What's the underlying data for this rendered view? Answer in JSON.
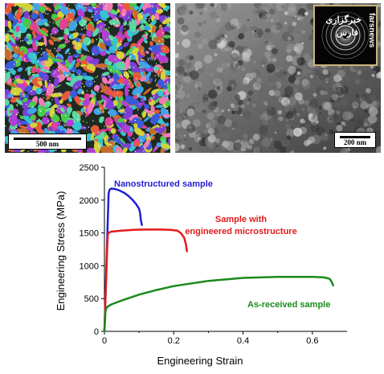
{
  "ebsd_panel": {
    "scale_label": "500 nm",
    "icon": "ebsd-grain-orientation-map"
  },
  "tem_panel": {
    "scale_label": "200 nm",
    "icon": "tem-bright-field-micrograph",
    "inset_icon": "saed-diffraction-ring-pattern"
  },
  "watermark": {
    "line1": "خبرگزاری",
    "line2": "فارس",
    "vertical": "farsnews"
  },
  "chart_data": {
    "type": "line",
    "title": "",
    "xlabel": "Engineering Strain",
    "ylabel": "Engineering Stress (MPa)",
    "xlim": [
      0,
      0.7
    ],
    "ylim": [
      0,
      2500
    ],
    "xticks": [
      "0",
      "0.2",
      "0.4",
      "0.6"
    ],
    "yticks": [
      "0",
      "500",
      "1000",
      "1500",
      "2000",
      "2500"
    ],
    "grid": false,
    "legend": "none",
    "series": [
      {
        "name": "Nanostructured sample",
        "color": "#1f1fd6",
        "x": [
          0,
          0.01,
          0.012,
          0.015,
          0.02,
          0.03,
          0.04,
          0.05,
          0.06,
          0.07,
          0.08,
          0.09,
          0.1,
          0.103,
          0.105,
          0.108
        ],
        "y": [
          0,
          1750,
          2100,
          2160,
          2175,
          2170,
          2155,
          2130,
          2100,
          2060,
          2010,
          1950,
          1870,
          1800,
          1700,
          1620
        ]
      },
      {
        "name": "Sample with engineered microstructure",
        "color": "#e31a1a",
        "x": [
          0,
          0.008,
          0.01,
          0.012,
          0.015,
          0.02,
          0.05,
          0.08,
          0.1,
          0.13,
          0.16,
          0.19,
          0.21,
          0.22,
          0.23,
          0.235,
          0.238
        ],
        "y": [
          0,
          1300,
          1480,
          1500,
          1510,
          1520,
          1535,
          1545,
          1550,
          1552,
          1552,
          1548,
          1535,
          1500,
          1430,
          1330,
          1220
        ]
      },
      {
        "name": "As-received sample",
        "color": "#1a8a1a",
        "x": [
          0,
          0.003,
          0.005,
          0.01,
          0.02,
          0.05,
          0.1,
          0.15,
          0.2,
          0.3,
          0.4,
          0.5,
          0.6,
          0.63,
          0.64,
          0.65,
          0.655,
          0.66
        ],
        "y": [
          0,
          300,
          350,
          380,
          410,
          470,
          560,
          630,
          690,
          770,
          815,
          830,
          830,
          825,
          815,
          800,
          760,
          700
        ]
      }
    ],
    "annotations": [
      {
        "text": "Nanostructured sample",
        "color": "#1f1fd6"
      },
      {
        "text": "Sample with",
        "color": "#e31a1a"
      },
      {
        "text": "engineered microstructure",
        "color": "#e31a1a"
      },
      {
        "text": "As-received sample",
        "color": "#1a8a1a"
      }
    ]
  }
}
